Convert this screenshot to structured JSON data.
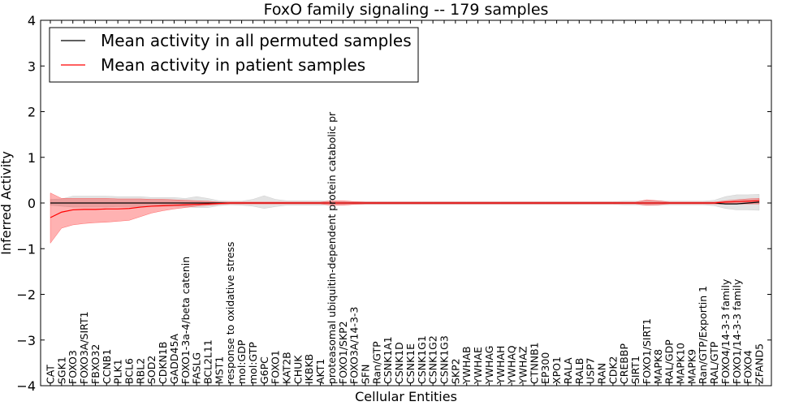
{
  "chart_data": {
    "type": "line",
    "title": "FoxO family signaling -- 179 samples",
    "xlabel": "Cellular Entities",
    "ylabel": "Inferred Activity",
    "ylim": [
      -4,
      4
    ],
    "yticks": [
      -4,
      -3,
      -2,
      -1,
      0,
      1,
      2,
      3,
      4
    ],
    "ytick_labels": [
      "−4",
      "−3",
      "−2",
      "−1",
      "0",
      "1",
      "2",
      "3",
      "4"
    ],
    "grid": false,
    "legend_position": "top-left",
    "categories": [
      "CAT",
      "SGK1",
      "FOXO3",
      "FOXO3A/SIRT1",
      "FBXO32",
      "CCNB1",
      "PLK1",
      "BCL6",
      "RBL2",
      "SOD2",
      "CDKN1B",
      "GADD45A",
      "FOXO1-3a-4/beta catenin",
      "FASLG",
      "BCL2L11",
      "MST1",
      "response to oxidative stress",
      "mol:GDP",
      "mol:GTP",
      "G6PC",
      "FOXO1",
      "KAT2B",
      "CHUK",
      "IKBKB",
      "AKT1",
      "proteasomal ubiquitin-dependent protein catabolic pr",
      "FOXO1/SKP2",
      "FOXO3A/14-3-3",
      "SFN",
      "Ran/GTP",
      "CSNK1A1",
      "CSNK1D",
      "CSNK1E",
      "CSNK1G1",
      "CSNK1G2",
      "CSNK1G3",
      "SKP2",
      "YWHAB",
      "YWHAE",
      "YWHAG",
      "YWHAH",
      "YWHAQ",
      "YWHAZ",
      "CTNNB1",
      "EP300",
      "XPO1",
      "RALA",
      "RALB",
      "USP7",
      "RAN",
      "CDK2",
      "CREBBP",
      "SIRT1",
      "FOXO1/SIRT1",
      "MAPK8",
      "RAL/GDP",
      "MAPK10",
      "MAPK9",
      "Ran/GTP/Exportin 1",
      "RAL/GTP",
      "FOXO4/14-3-3 family",
      "FOXO1/14-3-3 family",
      "FOXO4",
      "ZFAND5"
    ],
    "series": [
      {
        "name": "Mean activity in all permuted samples",
        "color": "#000000",
        "values": [
          0.0,
          0.0,
          0.0,
          0.0,
          0.0,
          0.0,
          0.0,
          0.0,
          0.0,
          0.0,
          0.0,
          0.0,
          0.0,
          0.0,
          0.0,
          0.0,
          0.0,
          0.0,
          0.0,
          0.0,
          0.0,
          0.0,
          0.0,
          0.0,
          0.0,
          0.0,
          0.0,
          0.0,
          0.0,
          0.0,
          0.0,
          0.0,
          0.0,
          0.0,
          0.0,
          0.0,
          0.0,
          0.0,
          0.0,
          0.0,
          0.0,
          0.0,
          0.0,
          0.0,
          0.0,
          0.0,
          0.0,
          0.0,
          0.0,
          0.0,
          0.0,
          0.0,
          0.0,
          0.0,
          0.0,
          0.0,
          0.0,
          0.0,
          0.0,
          0.0,
          -0.02,
          -0.02,
          0.0,
          0.02
        ],
        "band_lower": [
          -0.05,
          -0.07,
          -0.09,
          -0.09,
          -0.09,
          -0.09,
          -0.08,
          -0.08,
          -0.08,
          -0.07,
          -0.07,
          -0.07,
          -0.08,
          -0.1,
          -0.1,
          -0.06,
          -0.04,
          -0.05,
          -0.07,
          -0.12,
          -0.08,
          -0.05,
          -0.05,
          -0.05,
          -0.05,
          -0.04,
          -0.03,
          -0.03,
          -0.03,
          -0.03,
          -0.03,
          -0.03,
          -0.03,
          -0.03,
          -0.03,
          -0.03,
          -0.03,
          -0.03,
          -0.03,
          -0.03,
          -0.03,
          -0.03,
          -0.03,
          -0.03,
          -0.03,
          -0.03,
          -0.03,
          -0.03,
          -0.03,
          -0.03,
          -0.03,
          -0.04,
          -0.04,
          -0.05,
          -0.05,
          -0.04,
          -0.04,
          -0.04,
          -0.04,
          -0.06,
          -0.12,
          -0.15,
          -0.15,
          -0.16
        ],
        "band_upper": [
          0.08,
          0.09,
          0.15,
          0.15,
          0.15,
          0.15,
          0.14,
          0.14,
          0.14,
          0.12,
          0.12,
          0.12,
          0.1,
          0.14,
          0.1,
          0.05,
          0.04,
          0.04,
          0.08,
          0.16,
          0.08,
          0.05,
          0.05,
          0.05,
          0.05,
          0.04,
          0.03,
          0.03,
          0.03,
          0.03,
          0.03,
          0.03,
          0.03,
          0.03,
          0.03,
          0.03,
          0.03,
          0.03,
          0.03,
          0.03,
          0.03,
          0.03,
          0.03,
          0.03,
          0.03,
          0.03,
          0.03,
          0.03,
          0.03,
          0.03,
          0.03,
          0.04,
          0.04,
          0.05,
          0.05,
          0.04,
          0.04,
          0.04,
          0.04,
          0.06,
          0.14,
          0.18,
          0.18,
          0.19
        ]
      },
      {
        "name": "Mean activity in patient samples",
        "color": "#ff0000",
        "values": [
          -0.32,
          -0.2,
          -0.15,
          -0.14,
          -0.14,
          -0.13,
          -0.13,
          -0.12,
          -0.09,
          -0.07,
          -0.06,
          -0.05,
          -0.04,
          -0.03,
          -0.02,
          -0.01,
          0.0,
          0.0,
          0.0,
          0.0,
          0.0,
          0.0,
          0.0,
          0.0,
          0.0,
          0.0,
          0.0,
          0.0,
          0.0,
          0.0,
          0.0,
          0.0,
          0.0,
          0.0,
          0.0,
          0.0,
          0.0,
          0.0,
          0.0,
          0.0,
          0.0,
          0.0,
          0.0,
          0.0,
          0.0,
          0.0,
          0.0,
          0.0,
          0.0,
          0.0,
          0.0,
          0.0,
          0.0,
          0.0,
          0.0,
          0.0,
          0.0,
          0.0,
          0.0,
          0.0,
          0.02,
          0.03,
          0.04,
          0.05
        ],
        "band_lower": [
          -0.88,
          -0.55,
          -0.48,
          -0.45,
          -0.43,
          -0.42,
          -0.4,
          -0.38,
          -0.3,
          -0.22,
          -0.17,
          -0.13,
          -0.1,
          -0.07,
          -0.05,
          -0.03,
          -0.02,
          -0.02,
          -0.02,
          -0.02,
          -0.02,
          -0.02,
          -0.02,
          -0.02,
          -0.02,
          -0.05,
          -0.05,
          -0.03,
          -0.02,
          -0.02,
          -0.02,
          -0.02,
          -0.02,
          -0.02,
          -0.02,
          -0.02,
          -0.02,
          -0.02,
          -0.02,
          -0.02,
          -0.02,
          -0.02,
          -0.02,
          -0.02,
          -0.02,
          -0.02,
          -0.02,
          -0.02,
          -0.02,
          -0.02,
          -0.02,
          -0.02,
          -0.02,
          -0.05,
          -0.04,
          -0.02,
          -0.02,
          -0.02,
          -0.02,
          -0.02,
          -0.02,
          -0.02,
          -0.02,
          -0.02
        ],
        "band_upper": [
          0.22,
          0.1,
          0.1,
          0.1,
          0.1,
          0.1,
          0.09,
          0.09,
          0.09,
          0.08,
          0.08,
          0.07,
          0.06,
          0.05,
          0.04,
          0.02,
          0.02,
          0.02,
          0.02,
          0.02,
          0.02,
          0.02,
          0.02,
          0.02,
          0.02,
          0.05,
          0.05,
          0.03,
          0.02,
          0.02,
          0.02,
          0.02,
          0.02,
          0.02,
          0.02,
          0.02,
          0.02,
          0.02,
          0.02,
          0.02,
          0.02,
          0.02,
          0.02,
          0.02,
          0.02,
          0.02,
          0.02,
          0.02,
          0.02,
          0.02,
          0.02,
          0.02,
          0.02,
          0.07,
          0.05,
          0.02,
          0.02,
          0.02,
          0.02,
          0.02,
          0.05,
          0.07,
          0.09,
          0.1
        ]
      }
    ]
  }
}
